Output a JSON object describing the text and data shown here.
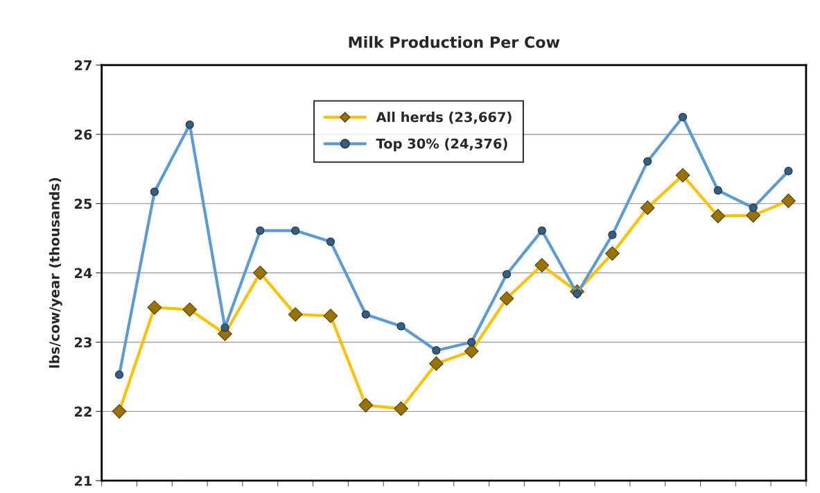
{
  "chart_data": {
    "type": "line",
    "title": "Milk Production Per Cow",
    "ylabel": "lbs/cow/year (thousands)",
    "categories": [
      null,
      null,
      null,
      null,
      null,
      null,
      null,
      null,
      null,
      null,
      null,
      null,
      null,
      null,
      null,
      null,
      null,
      null,
      null,
      null
    ],
    "series": [
      {
        "name": "All herds (23,667)",
        "color": "#ffc000",
        "marker": "diamond",
        "values": [
          22.0,
          23.5,
          23.47,
          23.12,
          24.0,
          23.4,
          23.38,
          22.09,
          22.04,
          22.69,
          22.87,
          23.63,
          24.11,
          23.73,
          24.28,
          24.94,
          25.41,
          24.82,
          24.83,
          25.04
        ]
      },
      {
        "name": "Top 30% (24,376)",
        "color": "#5b9bd5",
        "marker": "circle",
        "values": [
          22.53,
          25.17,
          26.14,
          23.21,
          24.61,
          24.61,
          24.45,
          23.4,
          23.23,
          22.88,
          23.0,
          23.98,
          24.61,
          23.7,
          24.55,
          25.61,
          26.25,
          25.19,
          24.94,
          25.47
        ]
      }
    ],
    "ylim": [
      21,
      27
    ],
    "yticks": [
      21,
      22,
      23,
      24,
      25,
      26,
      27
    ],
    "grid": "y",
    "legend": "top",
    "line_style": "solid"
  }
}
